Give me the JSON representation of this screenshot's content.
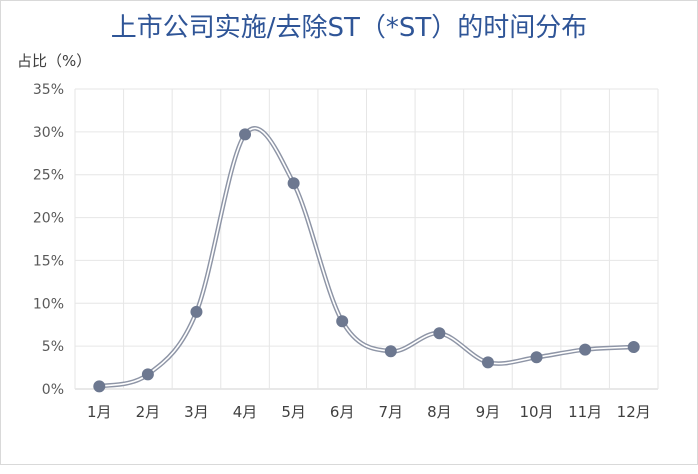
{
  "chart_data": {
    "type": "line",
    "title": "上市公司实施/去除ST（*ST）的时间分布",
    "ylabel": "占比（%）",
    "xlabel": "",
    "categories": [
      "1月",
      "2月",
      "3月",
      "4月",
      "5月",
      "6月",
      "7月",
      "8月",
      "9月",
      "10月",
      "11月",
      "12月"
    ],
    "ytick_labels": [
      "0%",
      "5%",
      "10%",
      "15%",
      "20%",
      "25%",
      "30%",
      "35%"
    ],
    "ylim": [
      0,
      35
    ],
    "yticks": [
      0,
      5,
      10,
      15,
      20,
      25,
      30,
      35
    ],
    "series": [
      {
        "values": [
          0.3,
          1.7,
          9.0,
          29.7,
          24.0,
          7.9,
          4.4,
          6.5,
          3.1,
          3.7,
          4.6,
          4.9
        ]
      }
    ],
    "grid": true,
    "smooth": true,
    "colors": {
      "line": "#8e95a6",
      "line_inner": "#ffffff",
      "marker": "#6d7890",
      "grid": "#e6e6e6",
      "axis": "#d0d0d0",
      "title": "#2f5597"
    }
  }
}
